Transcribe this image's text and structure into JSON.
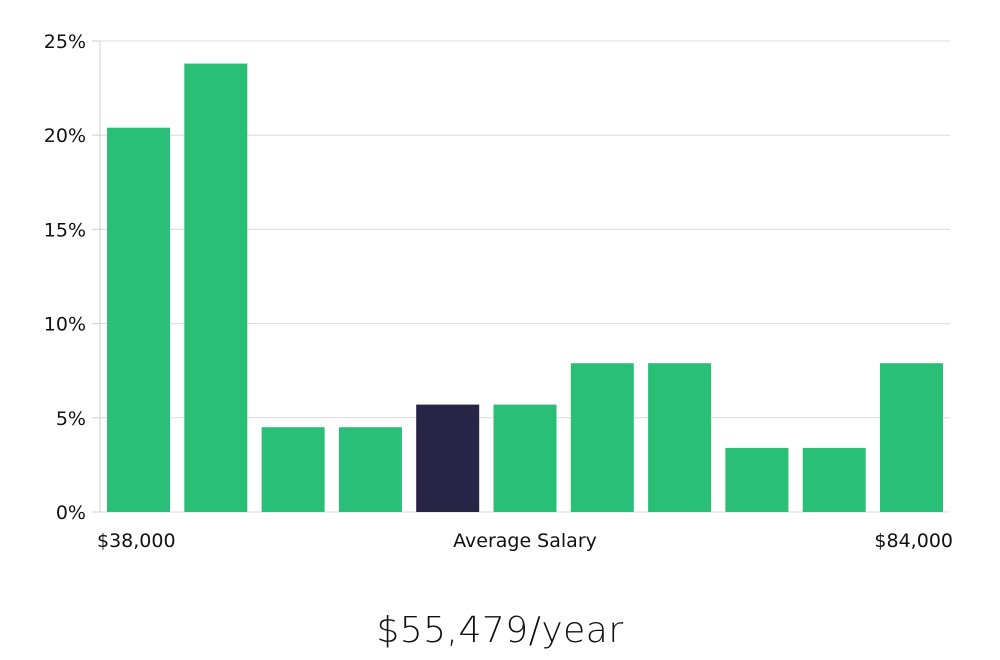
{
  "chart_data": {
    "type": "bar",
    "categories": [
      "1",
      "2",
      "3",
      "4",
      "5",
      "6",
      "7",
      "8",
      "9",
      "10",
      "11"
    ],
    "values": [
      20.4,
      23.8,
      4.5,
      4.5,
      5.7,
      5.7,
      7.9,
      7.9,
      3.4,
      3.4,
      7.9
    ],
    "highlight_index": 4,
    "bar_color": "#2abf76",
    "highlight_color": "#272445",
    "ylim": [
      0,
      25
    ],
    "yticks": [
      0,
      5,
      10,
      15,
      20,
      25
    ],
    "ytick_labels": [
      "0%",
      "5%",
      "10%",
      "15%",
      "20%",
      "25%"
    ],
    "x_min_label": "$38,000",
    "x_center_label": "Average Salary",
    "x_max_label": "$84,000",
    "grid": true
  },
  "summary": {
    "salary": "$55,479/year"
  }
}
